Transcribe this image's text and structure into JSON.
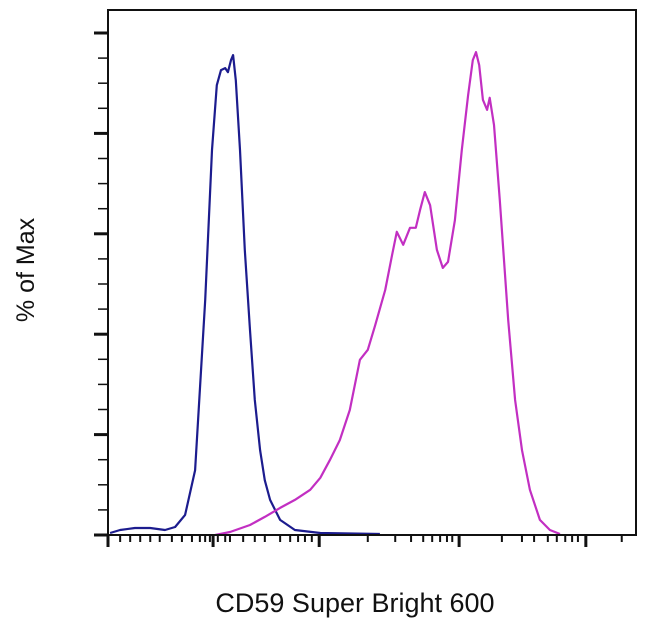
{
  "chart_data": {
    "type": "line",
    "title": "",
    "xlabel": "CD59 Super Bright 600",
    "ylabel": "% of Max",
    "xscale": "biexponential (tick labels not printed)",
    "xlim": [
      0,
      1000
    ],
    "ylim": [
      0,
      100
    ],
    "grid": false,
    "legend": "none",
    "x_major_ticks": [
      0,
      199,
      400,
      665,
      905
    ],
    "x_minor_ticks": [
      23,
      42,
      61,
      80,
      98,
      121,
      140,
      159,
      174,
      184,
      193,
      208,
      222,
      231,
      256,
      278,
      297,
      326,
      345,
      360,
      373,
      386,
      492,
      544,
      574,
      597,
      614,
      629,
      642,
      652,
      746,
      784,
      807,
      833,
      850,
      866,
      879,
      890,
      973
    ],
    "y_major_ticks": [
      0,
      20,
      40,
      60,
      80,
      100
    ],
    "y_minor_step": 5,
    "series": [
      {
        "color": "#1c1c8e",
        "x": [
          4,
          23,
          51,
          80,
          108,
          127,
          146,
          165,
          184,
          197,
          206,
          214,
          222,
          227,
          233,
          237,
          242,
          250,
          259,
          269,
          278,
          288,
          297,
          307,
          326,
          354,
          402,
          515
        ],
        "y": [
          0.4,
          1.0,
          1.4,
          1.4,
          1.0,
          1.6,
          4.0,
          12.9,
          46.8,
          76.7,
          89.6,
          92.6,
          93.0,
          92.2,
          94.6,
          95.6,
          90.6,
          76.7,
          56.8,
          40.8,
          26.9,
          16.9,
          10.9,
          7.0,
          3.0,
          1.0,
          0.4,
          0.2
        ]
      },
      {
        "color": "#c22fc2",
        "x": [
          203,
          231,
          269,
          297,
          326,
          354,
          383,
          402,
          420,
          439,
          458,
          477,
          492,
          506,
          525,
          538,
          547,
          559,
          572,
          583,
          591,
          600,
          610,
          623,
          634,
          644,
          657,
          670,
          682,
          691,
          697,
          703,
          710,
          718,
          723,
          731,
          742,
          758,
          771,
          784,
          799,
          818,
          837,
          856
        ],
        "y": [
          0,
          0.6,
          2.0,
          3.6,
          5.4,
          7.0,
          9.0,
          11.4,
          14.9,
          18.9,
          24.9,
          34.9,
          36.9,
          41.8,
          48.8,
          55.8,
          60.4,
          57.8,
          61.2,
          61.2,
          64.7,
          68.3,
          65.7,
          56.8,
          53.2,
          54.4,
          62.7,
          76.7,
          87.6,
          94.6,
          96.2,
          93.6,
          86.7,
          84.7,
          87.1,
          81.7,
          66.7,
          42.8,
          26.9,
          16.9,
          9.0,
          3.0,
          1.0,
          0.2
        ]
      }
    ]
  }
}
